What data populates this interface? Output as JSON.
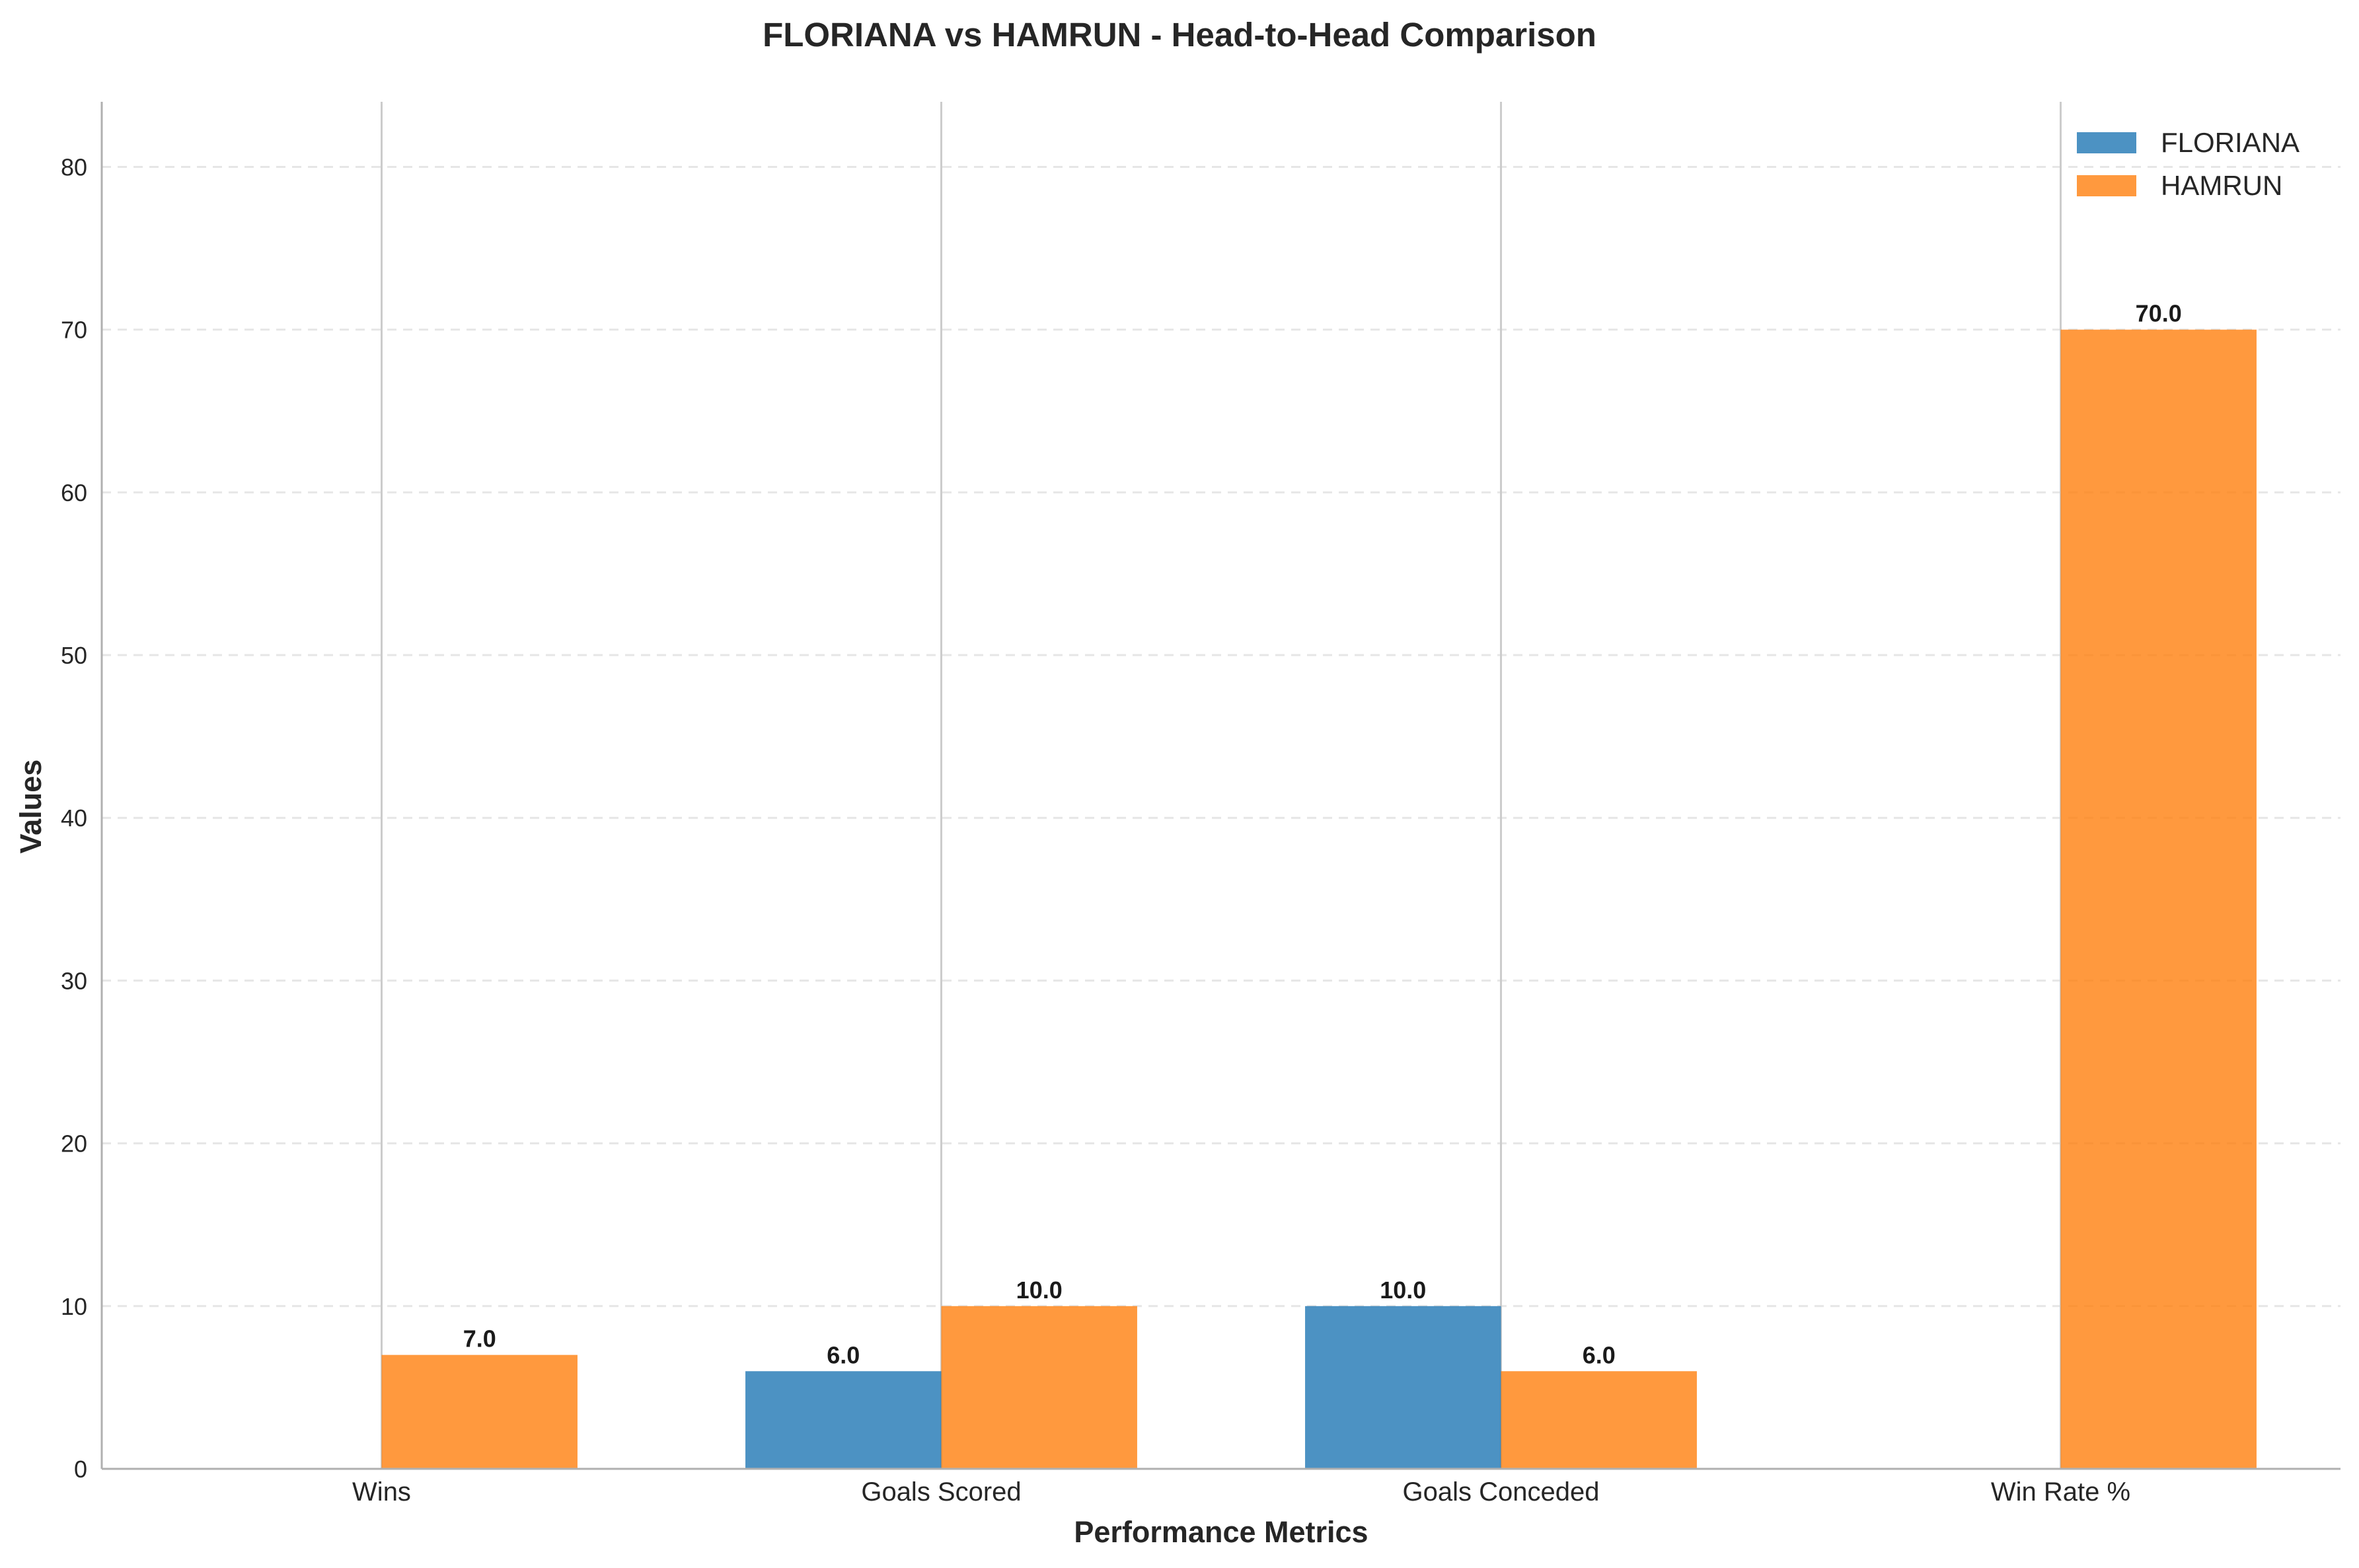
{
  "chart_data": {
    "type": "bar",
    "title": "FLORIANA vs HAMRUN - Head-to-Head Comparison",
    "xlabel": "Performance Metrics",
    "ylabel": "Values",
    "categories": [
      "Wins",
      "Goals Scored",
      "Goals Conceded",
      "Win Rate %"
    ],
    "series": [
      {
        "name": "FLORIANA",
        "color": "#1f77b4",
        "values": [
          0,
          6,
          10,
          0
        ],
        "labels": [
          null,
          "6.0",
          "10.0",
          null
        ]
      },
      {
        "name": "HAMRUN",
        "color": "#ff7f0e",
        "values": [
          7,
          10,
          6,
          70
        ],
        "labels": [
          "7.0",
          "10.0",
          "6.0",
          "70.0"
        ]
      }
    ],
    "ylim": [
      0,
      84
    ],
    "yticks": [
      0,
      10,
      20,
      30,
      40,
      50,
      60,
      70,
      80
    ],
    "grid": "y-dashed",
    "legend": "top-right"
  }
}
